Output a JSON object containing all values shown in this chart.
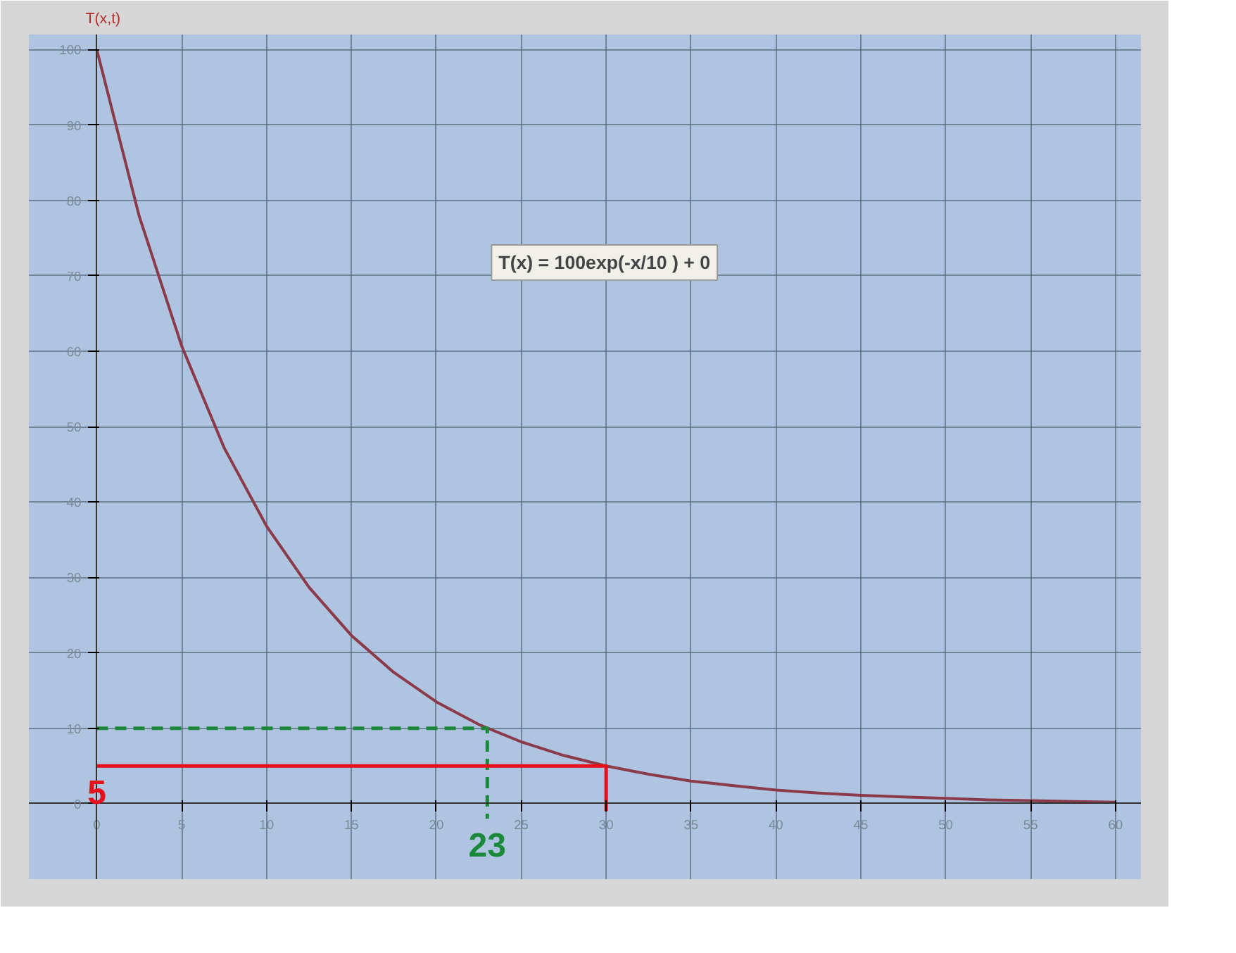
{
  "chart_data": {
    "type": "line",
    "ylabel": "T(x,t)",
    "x": [
      0,
      2.5,
      5,
      7.5,
      10,
      12.5,
      15,
      17.5,
      20,
      22.5,
      25,
      27.5,
      30,
      32.5,
      35,
      37.5,
      40,
      42.5,
      45,
      47.5,
      50,
      52.5,
      55,
      57.5,
      60
    ],
    "series": [
      {
        "color": "#8b3a4a",
        "values": [
          100,
          77.9,
          60.7,
          47.2,
          36.8,
          28.7,
          22.3,
          17.4,
          13.5,
          10.5,
          8.2,
          6.4,
          5.0,
          3.9,
          3.0,
          2.4,
          1.8,
          1.4,
          1.1,
          0.9,
          0.7,
          0.5,
          0.4,
          0.3,
          0.2
        ]
      },
      {
        "type": "line",
        "color": "#1a8a3a",
        "line_style": "dashed",
        "x": [
          0,
          23,
          23
        ],
        "values": [
          10,
          10,
          -2
        ]
      },
      {
        "type": "line",
        "color": "#e8101a",
        "line_style": "solid",
        "x": [
          0,
          30,
          30
        ],
        "values": [
          5,
          5,
          -1
        ]
      }
    ],
    "annotations": [
      "T(x) = 100exp(-x/10 ) + 0",
      {
        "text": "23",
        "x": 23,
        "y": -2
      },
      {
        "text": "5",
        "x": 0,
        "y": 5
      }
    ],
    "xlim": [
      -4,
      61.5
    ],
    "ylim": [
      -10,
      102
    ],
    "xticks": [
      0,
      5,
      10,
      15,
      20,
      25,
      30,
      35,
      40,
      45,
      50,
      55,
      60
    ],
    "yticks": [
      0,
      10,
      20,
      30,
      40,
      50,
      60,
      70,
      80,
      90,
      100
    ],
    "grid": true,
    "marker": "none",
    "line_style": "solid"
  }
}
